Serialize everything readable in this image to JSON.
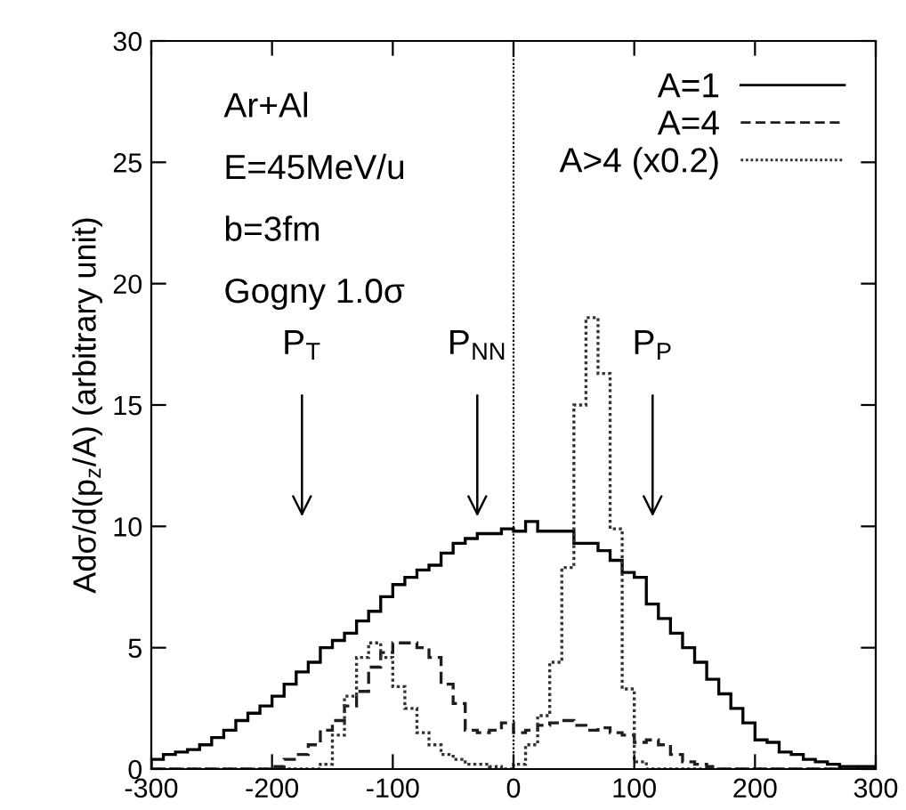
{
  "chart_data": {
    "type": "histogram",
    "xlabel": null,
    "ylabel": "Adσ/d(p$_{z}$/A) (arbitrary unit)",
    "bins": [
      -300,
      -290,
      -280,
      -270,
      -260,
      -250,
      -240,
      -230,
      -220,
      -210,
      -200,
      -190,
      -180,
      -170,
      -160,
      -150,
      -140,
      -130,
      -120,
      -110,
      -100,
      -90,
      -80,
      -70,
      -60,
      -50,
      -40,
      -30,
      -20,
      -10,
      0,
      10,
      20,
      30,
      40,
      50,
      60,
      70,
      80,
      90,
      100,
      110,
      120,
      130,
      140,
      150,
      160,
      170,
      180,
      190,
      200,
      210,
      220,
      230,
      240,
      250,
      260,
      270,
      280,
      290,
      300
    ],
    "series": [
      {
        "name": "A=1",
        "color": "#000000",
        "line_style": "solid",
        "values": [
          0.4,
          0.6,
          0.7,
          0.8,
          1.0,
          1.3,
          1.6,
          2.0,
          2.3,
          2.6,
          3.0,
          3.5,
          4.0,
          4.4,
          5.0,
          5.3,
          5.6,
          6.1,
          6.5,
          7.1,
          7.6,
          7.9,
          8.2,
          8.4,
          8.9,
          9.3,
          9.5,
          9.7,
          9.7,
          9.9,
          9.8,
          10.2,
          9.8,
          9.8,
          9.8,
          9.3,
          9.3,
          9.0,
          8.6,
          8.1,
          7.9,
          6.8,
          6.2,
          5.6,
          5.0,
          4.4,
          3.7,
          3.1,
          2.5,
          1.9,
          1.2,
          1.1,
          0.7,
          0.6,
          0.4,
          0.3,
          0.2,
          0.1,
          0.1,
          0.1
        ]
      },
      {
        "name": "A=4",
        "color": "#1e1e1e",
        "line_style": "dashed",
        "values": [
          0,
          0,
          0,
          0,
          0,
          0,
          0,
          0,
          0,
          0,
          0.1,
          0.4,
          0.6,
          1.0,
          1.6,
          2.0,
          2.6,
          3.2,
          4.2,
          4.8,
          5.2,
          5.2,
          5.0,
          4.6,
          3.5,
          2.7,
          1.6,
          1.5,
          1.6,
          1.9,
          1.5,
          1.6,
          1.8,
          1.9,
          2.0,
          1.8,
          1.6,
          1.7,
          1.5,
          1.4,
          1.1,
          1.2,
          1.0,
          0.6,
          0.3,
          0.2,
          0.1,
          0,
          0,
          0,
          0,
          0,
          0,
          0,
          0,
          0,
          0,
          0,
          0,
          0
        ]
      },
      {
        "name": "A>4 (x0.2)",
        "color": "#333333",
        "line_style": "dotted",
        "values": [
          0,
          0,
          0,
          0,
          0,
          0,
          0,
          0,
          0,
          0,
          0,
          0,
          0,
          0,
          0.2,
          1.4,
          3.0,
          4.6,
          5.2,
          4.6,
          3.4,
          2.5,
          1.5,
          1.0,
          0.6,
          0.4,
          0.2,
          0.2,
          0.1,
          0,
          0.2,
          1.0,
          2.2,
          4.4,
          8.3,
          15.0,
          18.6,
          16.3,
          9.9,
          3.3,
          0.3,
          0,
          0,
          0,
          0,
          0,
          0,
          0,
          0,
          0,
          0,
          0,
          0,
          0,
          0,
          0,
          0,
          0,
          0,
          0
        ]
      }
    ],
    "xlim": [
      -300,
      300
    ],
    "xticks": [
      -300,
      -200,
      -100,
      0,
      100,
      200,
      300
    ],
    "ylim": [
      0,
      30
    ],
    "yticks": [
      0,
      5,
      10,
      15,
      20,
      25,
      30
    ],
    "ref_lines": [
      {
        "axis": "x",
        "value": 0,
        "label": null,
        "line_style": "dotted"
      }
    ],
    "annotations": [
      "Ar+Al",
      "E=45MeV/u",
      "b=3fm",
      "Gogny 1.0σ",
      "P$_{T}$",
      "P$_{NN}$",
      "P$_{P}$"
    ],
    "legend": "top right",
    "grid": false
  }
}
